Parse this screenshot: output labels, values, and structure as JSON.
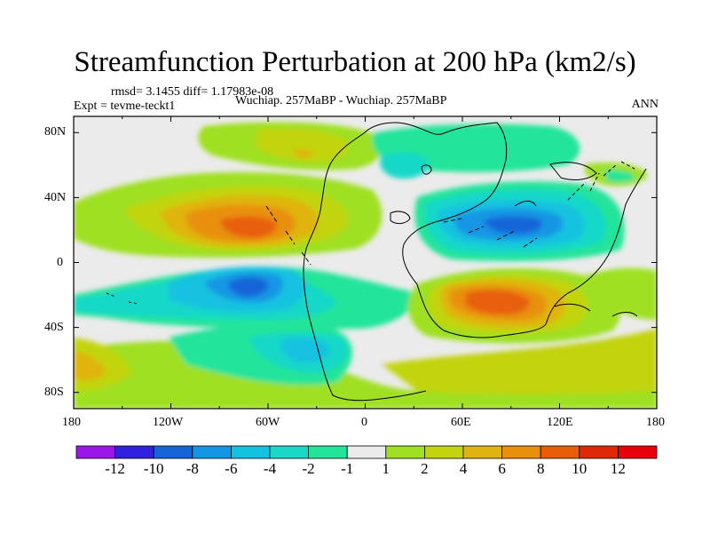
{
  "title": "Streamfunction Perturbation at 200 hPa (km2/s)",
  "stats": "rmsd= 3.1455 diff= 1.17983e-08",
  "experiment": "Expt = tevme-teckt1",
  "comparison": "Wuchiap. 257MaBP - Wuchiap. 257MaBP",
  "season": "ANN",
  "chart_data": {
    "type": "heatmap",
    "projection": "cylindrical-equidistant",
    "x_range": [
      -180,
      180
    ],
    "y_range": [
      -90,
      90
    ],
    "lat_ticks": [
      "80N",
      "40N",
      "0",
      "40S",
      "80S"
    ],
    "lon_ticks": [
      "180",
      "120W",
      "60W",
      "0",
      "60E",
      "120E",
      "180"
    ],
    "colorbar_labels": [
      "-12",
      "-10",
      "-8",
      "-6",
      "-4",
      "-2",
      "-1",
      "1",
      "2",
      "4",
      "6",
      "8",
      "10",
      "12"
    ],
    "colorbar_colors": [
      "#9a17e8",
      "#3020e0",
      "#1565d8",
      "#1596e4",
      "#12c2e0",
      "#19d8c8",
      "#22e49a",
      "#ebebeb",
      "#9fe023",
      "#c2d40e",
      "#e0b410",
      "#e8900c",
      "#e85e08",
      "#e02808",
      "#e8000a"
    ],
    "features": [
      {
        "name": "positive-anomaly-north-pacific-atlantic",
        "lon": -65,
        "lat": 22,
        "peak": 10
      },
      {
        "name": "negative-anomaly-south-atlantic",
        "lon": -55,
        "lat": -15,
        "peak": -8
      },
      {
        "name": "negative-anomaly-north-indian-ocean",
        "lon": 85,
        "lat": 22,
        "peak": -8
      },
      {
        "name": "positive-anomaly-south-indian-ocean",
        "lon": 85,
        "lat": -25,
        "peak": 10
      },
      {
        "name": "positive-band-arctic",
        "lon": -60,
        "lat": 80,
        "peak": 4
      },
      {
        "name": "negative-band-north-siberia",
        "lon": 60,
        "lat": 78,
        "peak": -4
      },
      {
        "name": "positive-band-southern-ocean",
        "lon": 120,
        "lat": -72,
        "peak": 4
      },
      {
        "name": "negative-band-southern-ocean-west",
        "lon": -40,
        "lat": -60,
        "peak": -4
      }
    ]
  }
}
